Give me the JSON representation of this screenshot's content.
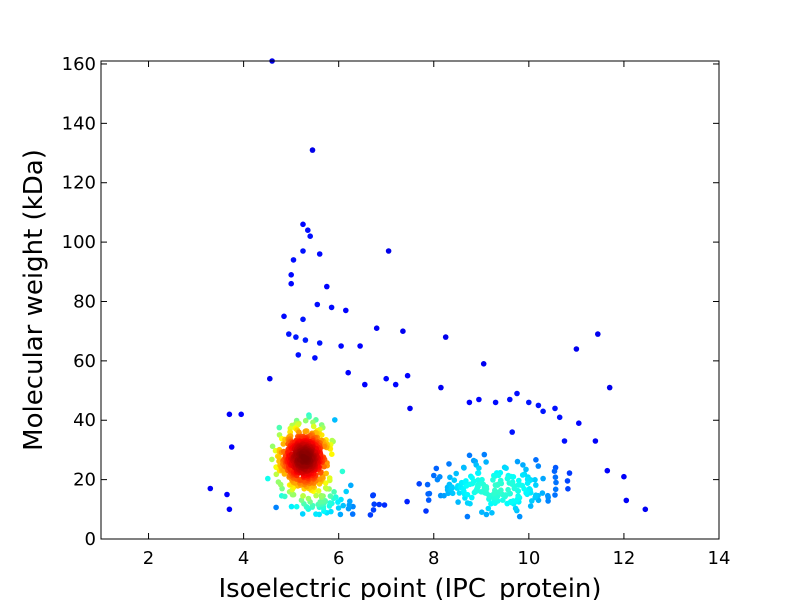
{
  "chart_data": {
    "type": "scatter",
    "xlabel": "Isoelectric point (IPC_protein)",
    "ylabel": "Molecular weight (kDa)",
    "xlim": [
      1,
      14
    ],
    "ylim": [
      0,
      161
    ],
    "xticks": [
      2,
      4,
      6,
      8,
      10,
      12,
      14
    ],
    "yticks": [
      0,
      20,
      40,
      60,
      80,
      100,
      120,
      140,
      160
    ],
    "grid": false,
    "legend": "none",
    "color_scale": "density (jet colormap: blue = low, red = high)",
    "colors": {
      "low": "#0000aa",
      "mid": "#00d4ff",
      "high": "#cc0000"
    },
    "clusters": [
      {
        "center": [
          5.3,
          27
        ],
        "spread": [
          0.45,
          9
        ],
        "count": 560,
        "density": "high"
      },
      {
        "center": [
          9.3,
          17
        ],
        "spread": [
          1.2,
          7
        ],
        "count": 190,
        "density": "medium"
      },
      {
        "center": [
          5.9,
          12
        ],
        "spread": [
          0.9,
          4
        ],
        "count": 60,
        "density": "medium"
      }
    ],
    "points": [
      [
        4.6,
        161
      ],
      [
        5.45,
        131
      ],
      [
        5.25,
        106
      ],
      [
        5.35,
        104
      ],
      [
        5.4,
        102
      ],
      [
        5.05,
        94
      ],
      [
        5.25,
        97
      ],
      [
        5.6,
        96
      ],
      [
        7.05,
        97
      ],
      [
        5.0,
        89
      ],
      [
        5.0,
        86
      ],
      [
        5.75,
        85
      ],
      [
        4.85,
        75
      ],
      [
        5.25,
        74
      ],
      [
        5.55,
        79
      ],
      [
        5.85,
        78
      ],
      [
        6.15,
        77
      ],
      [
        4.95,
        69
      ],
      [
        5.1,
        68
      ],
      [
        5.3,
        67
      ],
      [
        5.6,
        66
      ],
      [
        6.05,
        65
      ],
      [
        6.45,
        65
      ],
      [
        6.8,
        71
      ],
      [
        7.35,
        70
      ],
      [
        8.25,
        68
      ],
      [
        11.45,
        69
      ],
      [
        11.0,
        64
      ],
      [
        5.15,
        62
      ],
      [
        5.5,
        61
      ],
      [
        4.55,
        54
      ],
      [
        6.2,
        56
      ],
      [
        6.55,
        52
      ],
      [
        7.0,
        54
      ],
      [
        7.2,
        52
      ],
      [
        7.45,
        55
      ],
      [
        8.15,
        51
      ],
      [
        8.95,
        47
      ],
      [
        9.05,
        59
      ],
      [
        9.6,
        47
      ],
      [
        9.75,
        49
      ],
      [
        10.0,
        46
      ],
      [
        10.2,
        45
      ],
      [
        10.3,
        43
      ],
      [
        10.55,
        44
      ],
      [
        10.65,
        41
      ],
      [
        11.7,
        51
      ],
      [
        3.7,
        42
      ],
      [
        3.95,
        42
      ],
      [
        7.5,
        44
      ],
      [
        8.75,
        46
      ],
      [
        9.3,
        46
      ],
      [
        9.65,
        36
      ],
      [
        10.75,
        33
      ],
      [
        11.05,
        39
      ],
      [
        11.4,
        33
      ],
      [
        11.65,
        23
      ],
      [
        12.0,
        21
      ],
      [
        12.05,
        13
      ],
      [
        12.45,
        10
      ],
      [
        3.3,
        17
      ],
      [
        3.65,
        15
      ],
      [
        3.7,
        10
      ],
      [
        3.75,
        31
      ]
    ]
  }
}
